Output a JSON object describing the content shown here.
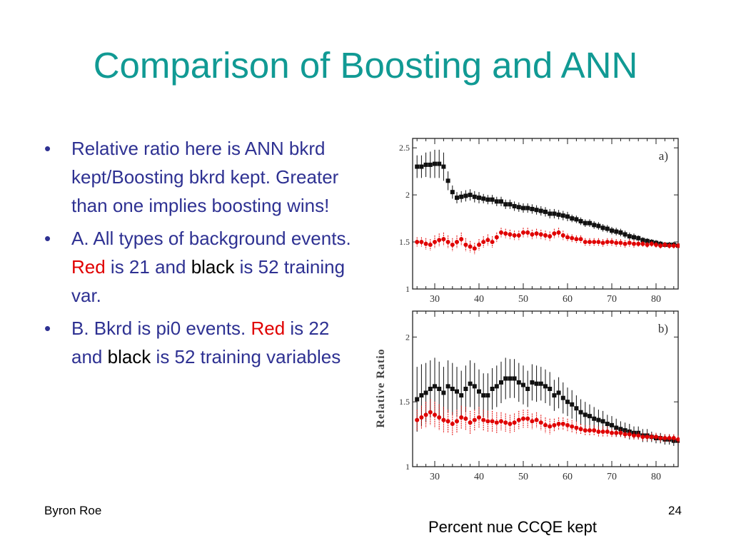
{
  "slide": {
    "title": "Comparison of Boosting and ANN",
    "bullets": [
      {
        "segments": [
          {
            "text": "Relative ratio here is ANN bkrd kept/Boosting bkrd kept.  Greater than one implies boosting wins!",
            "style": "normal"
          }
        ]
      },
      {
        "segments": [
          {
            "text": "A.  All types of background events.  ",
            "style": "normal"
          },
          {
            "text": "Red",
            "style": "red"
          },
          {
            "text": " is 21 and ",
            "style": "normal"
          },
          {
            "text": "black",
            "style": "black"
          },
          {
            "text": " is 52 training var.",
            "style": "normal"
          }
        ]
      },
      {
        "segments": [
          {
            "text": "B. Bkrd is pi0 events. ",
            "style": "normal"
          },
          {
            "text": "Red",
            "style": "red"
          },
          {
            "text": " is 22 and ",
            "style": "normal"
          },
          {
            "text": "black",
            "style": "black"
          },
          {
            "text": " is 52 training variables",
            "style": "normal"
          }
        ]
      }
    ],
    "bullet_char": "•",
    "footer_left": "Byron Roe",
    "page_number": "24",
    "x_caption": "Percent nue CCQE kept",
    "y_caption": "Relative Ratio",
    "colors": {
      "title": "#119a94",
      "text": "#2e3192",
      "red": "#e00000",
      "black": "#000000"
    }
  },
  "chart_data": [
    {
      "type": "scatter",
      "panel_label": "a)",
      "xlabel": "",
      "ylabel": "Relative Ratio",
      "xlim": [
        25,
        85
      ],
      "ylim": [
        1,
        2.6
      ],
      "xticks": [
        30,
        40,
        50,
        60,
        70,
        80
      ],
      "yticks": [
        1,
        1.5,
        2,
        2.5
      ],
      "ytick_labels": [
        "1",
        "1.5",
        "2",
        "2.5"
      ],
      "series": [
        {
          "color": "black",
          "x": [
            26,
            27,
            28,
            29,
            30,
            31,
            32,
            33,
            34,
            35,
            36,
            37,
            38,
            39,
            40,
            41,
            42,
            43,
            44,
            45,
            46,
            47,
            48,
            49,
            50,
            51,
            52,
            53,
            54,
            55,
            56,
            57,
            58,
            59,
            60,
            61,
            62,
            63,
            64,
            65,
            66,
            67,
            68,
            69,
            70,
            71,
            72,
            73,
            74,
            75,
            76,
            77,
            78,
            79,
            80,
            81,
            82,
            83,
            84,
            85
          ],
          "y": [
            2.3,
            2.3,
            2.32,
            2.32,
            2.33,
            2.33,
            2.3,
            2.15,
            2.03,
            1.97,
            1.98,
            1.99,
            2.0,
            1.98,
            1.97,
            1.96,
            1.95,
            1.95,
            1.93,
            1.93,
            1.9,
            1.9,
            1.88,
            1.87,
            1.86,
            1.86,
            1.85,
            1.84,
            1.83,
            1.82,
            1.8,
            1.8,
            1.79,
            1.78,
            1.77,
            1.75,
            1.74,
            1.72,
            1.7,
            1.7,
            1.68,
            1.67,
            1.65,
            1.64,
            1.62,
            1.61,
            1.6,
            1.58,
            1.56,
            1.55,
            1.54,
            1.52,
            1.51,
            1.5,
            1.49,
            1.48,
            1.47,
            1.47,
            1.47,
            1.46
          ],
          "err": [
            0.12,
            0.12,
            0.13,
            0.14,
            0.15,
            0.15,
            0.15,
            0.1,
            0.07,
            0.06,
            0.06,
            0.06,
            0.06,
            0.06,
            0.06,
            0.05,
            0.05,
            0.05,
            0.05,
            0.05,
            0.05,
            0.05,
            0.05,
            0.05,
            0.05,
            0.05,
            0.05,
            0.05,
            0.05,
            0.05,
            0.05,
            0.05,
            0.05,
            0.05,
            0.05,
            0.04,
            0.04,
            0.04,
            0.04,
            0.04,
            0.04,
            0.04,
            0.04,
            0.04,
            0.04,
            0.04,
            0.04,
            0.04,
            0.04,
            0.04,
            0.03,
            0.03,
            0.03,
            0.03,
            0.03,
            0.03,
            0.03,
            0.03,
            0.03,
            0.03
          ]
        },
        {
          "color": "red",
          "x": [
            26,
            27,
            28,
            29,
            30,
            31,
            32,
            33,
            34,
            35,
            36,
            37,
            38,
            39,
            40,
            41,
            42,
            43,
            44,
            45,
            46,
            47,
            48,
            49,
            50,
            51,
            52,
            53,
            54,
            55,
            56,
            57,
            58,
            59,
            60,
            61,
            62,
            63,
            64,
            65,
            66,
            67,
            68,
            69,
            70,
            71,
            72,
            73,
            74,
            75,
            76,
            77,
            78,
            79,
            80,
            81,
            82,
            83,
            84,
            85
          ],
          "y": [
            1.5,
            1.5,
            1.48,
            1.47,
            1.5,
            1.52,
            1.53,
            1.5,
            1.47,
            1.5,
            1.53,
            1.47,
            1.45,
            1.43,
            1.47,
            1.5,
            1.52,
            1.5,
            1.55,
            1.6,
            1.59,
            1.58,
            1.57,
            1.57,
            1.6,
            1.6,
            1.58,
            1.59,
            1.58,
            1.57,
            1.56,
            1.59,
            1.6,
            1.57,
            1.55,
            1.54,
            1.53,
            1.53,
            1.5,
            1.5,
            1.5,
            1.5,
            1.49,
            1.5,
            1.5,
            1.49,
            1.49,
            1.48,
            1.49,
            1.48,
            1.48,
            1.48,
            1.47,
            1.48,
            1.47,
            1.46,
            1.47,
            1.46,
            1.46,
            1.46
          ],
          "err": [
            0.05,
            0.05,
            0.06,
            0.06,
            0.07,
            0.07,
            0.07,
            0.07,
            0.07,
            0.07,
            0.07,
            0.07,
            0.06,
            0.06,
            0.06,
            0.06,
            0.06,
            0.06,
            0.05,
            0.05,
            0.05,
            0.05,
            0.05,
            0.05,
            0.05,
            0.05,
            0.05,
            0.05,
            0.05,
            0.05,
            0.05,
            0.05,
            0.05,
            0.05,
            0.04,
            0.04,
            0.04,
            0.04,
            0.04,
            0.04,
            0.04,
            0.04,
            0.04,
            0.04,
            0.04,
            0.04,
            0.04,
            0.04,
            0.04,
            0.04,
            0.03,
            0.03,
            0.03,
            0.03,
            0.03,
            0.03,
            0.03,
            0.03,
            0.03,
            0.03
          ]
        }
      ]
    },
    {
      "type": "scatter",
      "panel_label": "b)",
      "xlabel": "Percent nue CCQE kept",
      "ylabel": "Relative Ratio",
      "xlim": [
        25,
        85
      ],
      "ylim": [
        1,
        2.2
      ],
      "xticks": [
        30,
        40,
        50,
        60,
        70,
        80
      ],
      "yticks": [
        1,
        1.5,
        2
      ],
      "ytick_labels": [
        "1",
        "1.5",
        "2"
      ],
      "series": [
        {
          "color": "black",
          "x": [
            26,
            27,
            28,
            29,
            30,
            31,
            32,
            33,
            34,
            35,
            36,
            37,
            38,
            39,
            40,
            41,
            42,
            43,
            44,
            45,
            46,
            47,
            48,
            49,
            50,
            51,
            52,
            53,
            54,
            55,
            56,
            57,
            58,
            59,
            60,
            61,
            62,
            63,
            64,
            65,
            66,
            67,
            68,
            69,
            70,
            71,
            72,
            73,
            74,
            75,
            76,
            77,
            78,
            79,
            80,
            81,
            82,
            83,
            84,
            85
          ],
          "y": [
            1.52,
            1.55,
            1.57,
            1.6,
            1.62,
            1.6,
            1.57,
            1.62,
            1.6,
            1.58,
            1.55,
            1.6,
            1.64,
            1.62,
            1.58,
            1.55,
            1.55,
            1.6,
            1.62,
            1.65,
            1.68,
            1.68,
            1.68,
            1.65,
            1.63,
            1.6,
            1.65,
            1.64,
            1.64,
            1.62,
            1.6,
            1.55,
            1.57,
            1.53,
            1.5,
            1.48,
            1.45,
            1.42,
            1.4,
            1.39,
            1.37,
            1.36,
            1.35,
            1.33,
            1.32,
            1.3,
            1.29,
            1.28,
            1.27,
            1.26,
            1.26,
            1.24,
            1.24,
            1.23,
            1.22,
            1.22,
            1.21,
            1.21,
            1.2,
            1.2
          ],
          "err": [
            0.25,
            0.24,
            0.23,
            0.22,
            0.22,
            0.21,
            0.2,
            0.2,
            0.2,
            0.19,
            0.19,
            0.18,
            0.18,
            0.18,
            0.17,
            0.17,
            0.17,
            0.16,
            0.16,
            0.16,
            0.16,
            0.15,
            0.15,
            0.15,
            0.15,
            0.14,
            0.14,
            0.14,
            0.13,
            0.13,
            0.13,
            0.12,
            0.12,
            0.12,
            0.11,
            0.11,
            0.1,
            0.1,
            0.1,
            0.09,
            0.09,
            0.08,
            0.08,
            0.07,
            0.07,
            0.07,
            0.06,
            0.06,
            0.06,
            0.05,
            0.05,
            0.05,
            0.05,
            0.04,
            0.04,
            0.04,
            0.04,
            0.04,
            0.04,
            0.04
          ]
        },
        {
          "color": "red",
          "x": [
            26,
            27,
            28,
            29,
            30,
            31,
            32,
            33,
            34,
            35,
            36,
            37,
            38,
            39,
            40,
            41,
            42,
            43,
            44,
            45,
            46,
            47,
            48,
            49,
            50,
            51,
            52,
            53,
            54,
            55,
            56,
            57,
            58,
            59,
            60,
            61,
            62,
            63,
            64,
            65,
            66,
            67,
            68,
            69,
            70,
            71,
            72,
            73,
            74,
            75,
            76,
            77,
            78,
            79,
            80,
            81,
            82,
            83,
            84,
            85
          ],
          "y": [
            1.36,
            1.38,
            1.4,
            1.42,
            1.4,
            1.38,
            1.36,
            1.35,
            1.33,
            1.35,
            1.38,
            1.37,
            1.34,
            1.36,
            1.38,
            1.36,
            1.35,
            1.35,
            1.34,
            1.35,
            1.34,
            1.33,
            1.34,
            1.36,
            1.37,
            1.37,
            1.35,
            1.36,
            1.34,
            1.32,
            1.31,
            1.32,
            1.33,
            1.33,
            1.32,
            1.31,
            1.3,
            1.29,
            1.28,
            1.28,
            1.28,
            1.27,
            1.27,
            1.27,
            1.26,
            1.26,
            1.26,
            1.25,
            1.25,
            1.24,
            1.24,
            1.23,
            1.23,
            1.23,
            1.23,
            1.22,
            1.22,
            1.22,
            1.22,
            1.21
          ],
          "err": [
            0.08,
            0.09,
            0.1,
            0.1,
            0.1,
            0.1,
            0.1,
            0.09,
            0.09,
            0.09,
            0.09,
            0.09,
            0.09,
            0.08,
            0.08,
            0.08,
            0.08,
            0.08,
            0.08,
            0.07,
            0.07,
            0.07,
            0.07,
            0.07,
            0.07,
            0.07,
            0.06,
            0.06,
            0.06,
            0.06,
            0.06,
            0.05,
            0.05,
            0.05,
            0.05,
            0.05,
            0.05,
            0.04,
            0.04,
            0.04,
            0.04,
            0.04,
            0.04,
            0.04,
            0.03,
            0.03,
            0.03,
            0.03,
            0.03,
            0.03,
            0.03,
            0.03,
            0.03,
            0.03,
            0.03,
            0.03,
            0.03,
            0.03,
            0.03,
            0.03
          ]
        }
      ]
    }
  ]
}
